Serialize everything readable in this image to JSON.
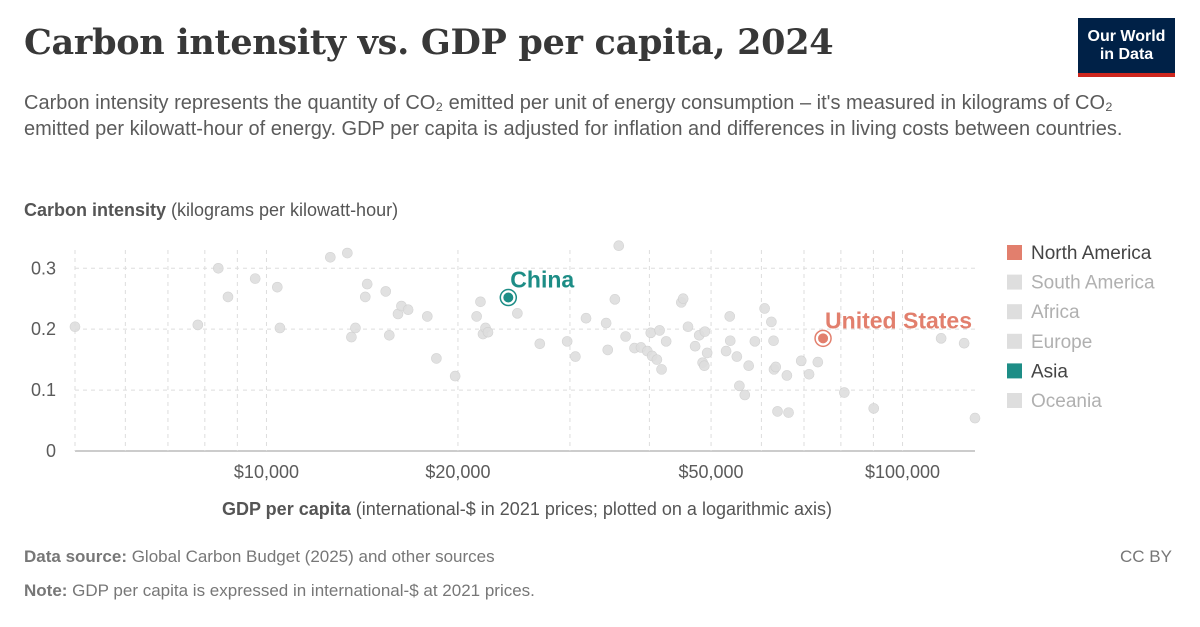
{
  "header": {
    "title": "Carbon intensity vs. GDP per capita, 2024",
    "subtitle": "Carbon intensity represents the quantity of CO₂ emitted per unit of energy consumption – it's measured in kilograms of CO₂ emitted per kilowatt-hour of energy. GDP per capita is adjusted for inflation and differences in living costs between countries.",
    "logo_line1": "Our World",
    "logo_line2": "in Data"
  },
  "footer": {
    "source_label": "Data source:",
    "source_text": " Global Carbon Budget (2025) and other sources",
    "note_label": "Note:",
    "note_text": " GDP per capita is expressed in international-$ at 2021 prices.",
    "license": "CC BY"
  },
  "colors": {
    "north_america": "#e27f6d",
    "asia": "#1d8d86",
    "muted": "#dedede",
    "grid": "#dddddd",
    "axis_text": "#5b5b5b"
  },
  "chart_data": {
    "type": "scatter",
    "ylabel_bold": "Carbon intensity",
    "ylabel_rest": " (kilograms per kilowatt-hour)",
    "xlabel_bold": "GDP per capita",
    "xlabel_rest": " (international-$ in 2021 prices; plotted on a logarithmic axis)",
    "x_scale": "log",
    "xlim": [
      5000,
      130000
    ],
    "ylim": [
      0,
      0.33
    ],
    "x_ticks": [
      {
        "value": 10000,
        "label": "$10,000"
      },
      {
        "value": 20000,
        "label": "$20,000"
      },
      {
        "value": 50000,
        "label": "$50,000"
      },
      {
        "value": 100000,
        "label": "$100,000"
      }
    ],
    "x_minor_ticks": [
      6000,
      7000,
      8000,
      9000,
      30000,
      40000,
      60000,
      70000,
      80000,
      90000
    ],
    "y_ticks": [
      {
        "value": 0,
        "label": "0"
      },
      {
        "value": 0.1,
        "label": "0.1"
      },
      {
        "value": 0.2,
        "label": "0.2"
      },
      {
        "value": 0.3,
        "label": "0.3"
      }
    ],
    "grid": true,
    "legend_position": "right",
    "legend": [
      {
        "name": "North America",
        "active": true,
        "color_key": "north_america"
      },
      {
        "name": "South America",
        "active": false,
        "color_key": "muted"
      },
      {
        "name": "Africa",
        "active": false,
        "color_key": "muted"
      },
      {
        "name": "Europe",
        "active": false,
        "color_key": "muted"
      },
      {
        "name": "Asia",
        "active": true,
        "color_key": "asia"
      },
      {
        "name": "Oceania",
        "active": false,
        "color_key": "muted"
      }
    ],
    "highlighted": [
      {
        "label": "China",
        "x": 24000,
        "y": 0.252,
        "color_key": "asia"
      },
      {
        "label": "United States",
        "x": 75000,
        "y": 0.185,
        "color_key": "north_america"
      }
    ],
    "points": [
      [
        5000,
        0.204
      ],
      [
        7800,
        0.207
      ],
      [
        8400,
        0.3
      ],
      [
        8700,
        0.253
      ],
      [
        9600,
        0.283
      ],
      [
        10400,
        0.269
      ],
      [
        10500,
        0.202
      ],
      [
        12600,
        0.318
      ],
      [
        13400,
        0.325
      ],
      [
        13600,
        0.187
      ],
      [
        13800,
        0.202
      ],
      [
        14300,
        0.253
      ],
      [
        14400,
        0.274
      ],
      [
        15400,
        0.262
      ],
      [
        15600,
        0.19
      ],
      [
        16100,
        0.225
      ],
      [
        16300,
        0.238
      ],
      [
        16700,
        0.232
      ],
      [
        17900,
        0.221
      ],
      [
        18500,
        0.152
      ],
      [
        19800,
        0.123
      ],
      [
        21400,
        0.221
      ],
      [
        21700,
        0.245
      ],
      [
        21900,
        0.192
      ],
      [
        22100,
        0.202
      ],
      [
        22300,
        0.195
      ],
      [
        24800,
        0.226
      ],
      [
        26900,
        0.176
      ],
      [
        29700,
        0.18
      ],
      [
        30600,
        0.155
      ],
      [
        31800,
        0.218
      ],
      [
        34200,
        0.21
      ],
      [
        34400,
        0.166
      ],
      [
        35300,
        0.249
      ],
      [
        35800,
        0.337
      ],
      [
        36700,
        0.188
      ],
      [
        37900,
        0.169
      ],
      [
        38800,
        0.17
      ],
      [
        39700,
        0.164
      ],
      [
        40200,
        0.194
      ],
      [
        40400,
        0.156
      ],
      [
        41100,
        0.15
      ],
      [
        41500,
        0.198
      ],
      [
        41800,
        0.134
      ],
      [
        42500,
        0.18
      ],
      [
        44900,
        0.244
      ],
      [
        45200,
        0.25
      ],
      [
        46000,
        0.204
      ],
      [
        47200,
        0.172
      ],
      [
        47900,
        0.19
      ],
      [
        48500,
        0.145
      ],
      [
        48800,
        0.14
      ],
      [
        48900,
        0.196
      ],
      [
        49300,
        0.161
      ],
      [
        52800,
        0.164
      ],
      [
        53500,
        0.221
      ],
      [
        53600,
        0.181
      ],
      [
        54900,
        0.155
      ],
      [
        55400,
        0.107
      ],
      [
        56500,
        0.092
      ],
      [
        57300,
        0.14
      ],
      [
        58600,
        0.18
      ],
      [
        60700,
        0.234
      ],
      [
        62200,
        0.212
      ],
      [
        62700,
        0.181
      ],
      [
        62800,
        0.134
      ],
      [
        63200,
        0.138
      ],
      [
        63600,
        0.065
      ],
      [
        65800,
        0.124
      ],
      [
        66200,
        0.063
      ],
      [
        69300,
        0.148
      ],
      [
        71300,
        0.126
      ],
      [
        73600,
        0.146
      ],
      [
        81000,
        0.096
      ],
      [
        90100,
        0.07
      ],
      [
        115000,
        0.185
      ],
      [
        125000,
        0.177
      ],
      [
        130000,
        0.054
      ]
    ]
  }
}
